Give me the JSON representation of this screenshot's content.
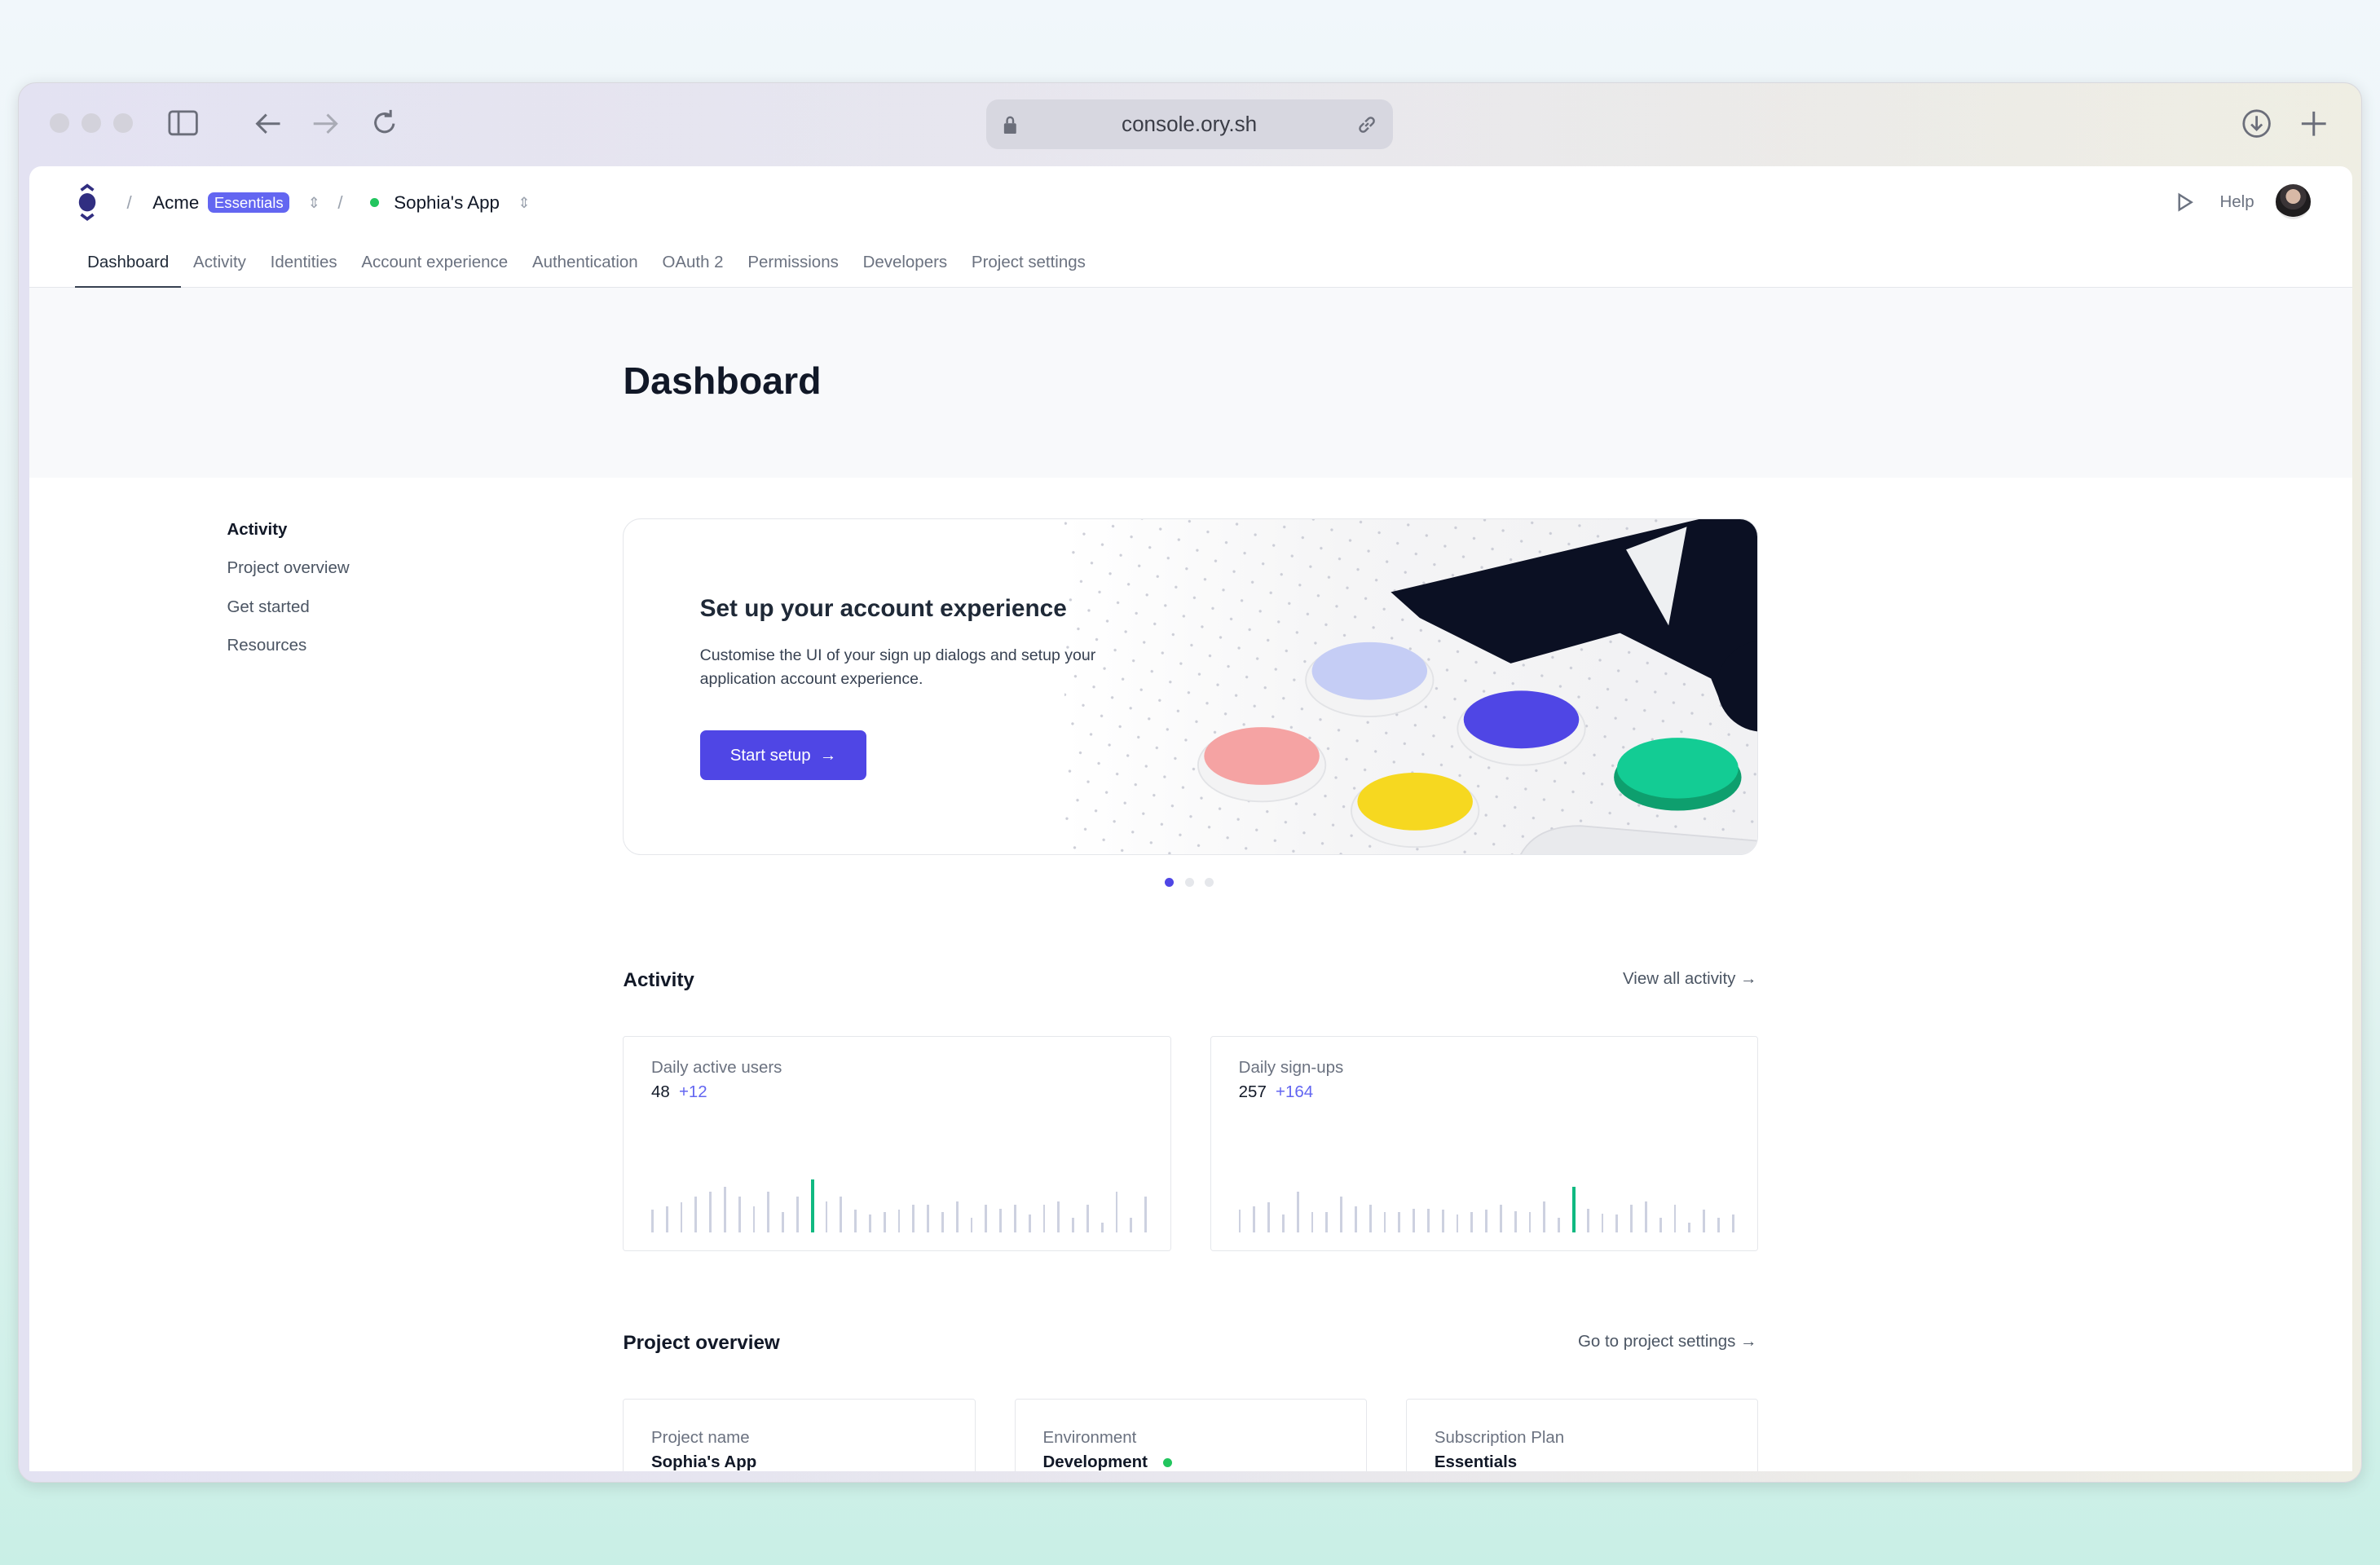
{
  "browser": {
    "url": "console.ory.sh",
    "icons": [
      "sidebar-icon",
      "back-arrow-icon",
      "forward-arrow-icon",
      "reload-icon",
      "lock-icon",
      "link-icon",
      "download-icon",
      "new-tab-plus-icon"
    ]
  },
  "header": {
    "org": "Acme",
    "plan_badge": "Essentials",
    "project": "Sophia's App",
    "help": "Help",
    "status_color": "#22c55e"
  },
  "tabs": [
    "Dashboard",
    "Activity",
    "Identities",
    "Account experience",
    "Authentication",
    "OAuth 2",
    "Permissions",
    "Developers",
    "Project settings"
  ],
  "page": {
    "title": "Dashboard"
  },
  "left_nav": [
    "Activity",
    "Project overview",
    "Get started",
    "Resources"
  ],
  "hero": {
    "title": "Set up your account experience",
    "description": "Customise the UI of your sign up dialogs and setup your application account experience.",
    "button": "Start setup",
    "arrow": "→",
    "slides": 3,
    "active_slide": 0
  },
  "activity": {
    "heading": "Activity",
    "link": "View all activity →",
    "cards": [
      {
        "label": "Daily active users",
        "value": "48",
        "delta": "+12",
        "highlight_index": 11,
        "bars": [
          83,
          95,
          110,
          131,
          149,
          167,
          131,
          95,
          149,
          73,
          131,
          193,
          113,
          131,
          83,
          65,
          73,
          83,
          100,
          100,
          73,
          113,
          55,
          100,
          87,
          100,
          65,
          100,
          113,
          55,
          100,
          35,
          149,
          55,
          131
        ]
      },
      {
        "label": "Daily sign-ups",
        "value": "257",
        "delta": "+164",
        "highlight_index": 23,
        "bars": [
          83,
          95,
          110,
          65,
          149,
          73,
          73,
          131,
          95,
          100,
          73,
          73,
          87,
          87,
          83,
          65,
          73,
          83,
          100,
          77,
          73,
          113,
          55,
          167,
          87,
          69,
          65,
          100,
          113,
          55,
          100,
          35,
          83,
          55,
          65
        ]
      }
    ]
  },
  "project": {
    "heading": "Project overview",
    "link": "Go to project settings →",
    "cards": [
      {
        "label": "Project name",
        "value": "Sophia's App"
      },
      {
        "label": "Environment",
        "value": "Development"
      },
      {
        "label": "Subscription Plan",
        "value": "Essentials"
      }
    ]
  },
  "colors": {
    "accent": "#4f46e5",
    "bar": "#cdd1e0",
    "bar_highlight": "#10b981"
  }
}
